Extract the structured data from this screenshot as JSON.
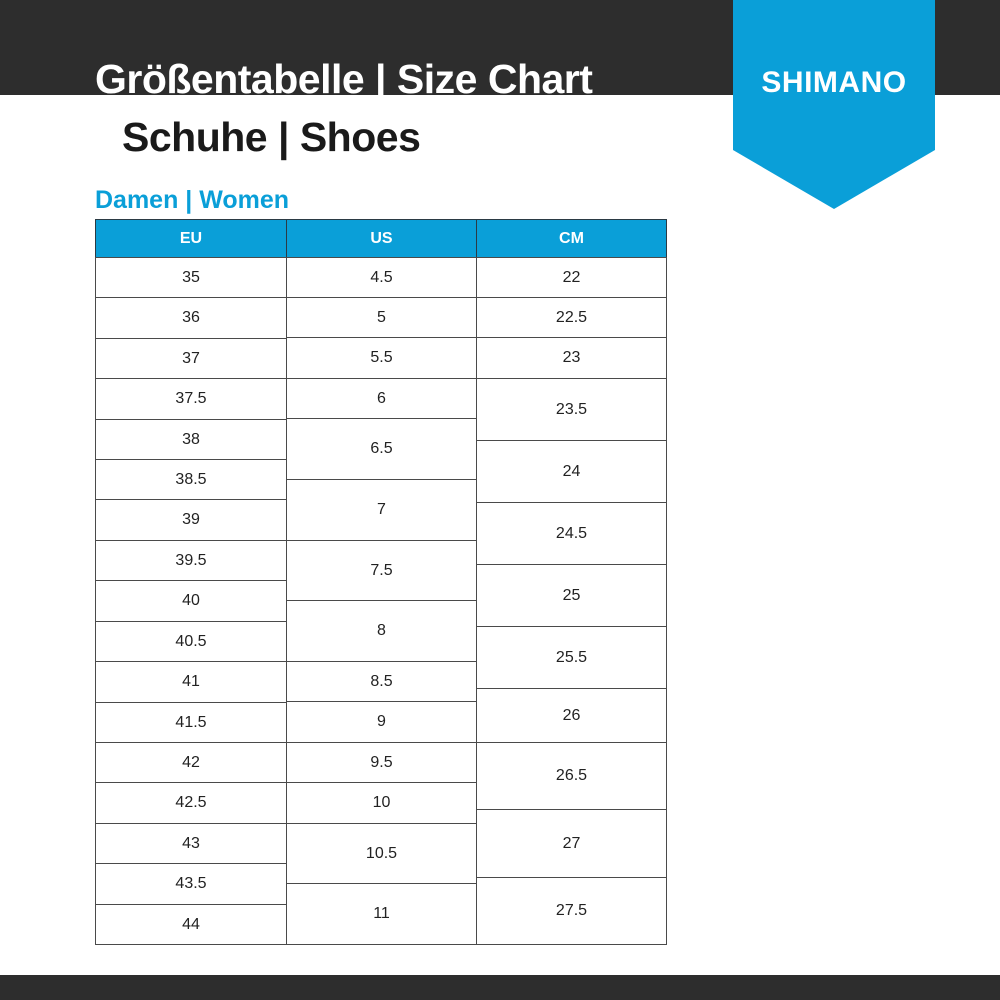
{
  "header": {
    "title": "Größentabelle | Size Chart",
    "subtitle": "Schuhe | Shoes",
    "brand": "SHIMANO",
    "brand_color": "#0a9fd8",
    "band_color": "#2d2d2d"
  },
  "section": {
    "title": "Damen | Women"
  },
  "table": {
    "columns": [
      "EU",
      "US",
      "CM"
    ],
    "eu": [
      "35",
      "36",
      "37",
      "37.5",
      "38",
      "38.5",
      "39",
      "39.5",
      "40",
      "40.5",
      "41",
      "41.5",
      "42",
      "42.5",
      "43",
      "43.5",
      "44"
    ],
    "us": [
      "4.5",
      "5",
      "5.5",
      "6",
      "6.5",
      "7",
      "7.5",
      "8",
      "8.5",
      "9",
      "9.5",
      "10",
      "10.5",
      "11"
    ],
    "cm": [
      "22",
      "22.5",
      "23",
      "23.5",
      "24",
      "24.5",
      "25",
      "25.5",
      "26",
      "26.5",
      "27",
      "27.5"
    ]
  }
}
